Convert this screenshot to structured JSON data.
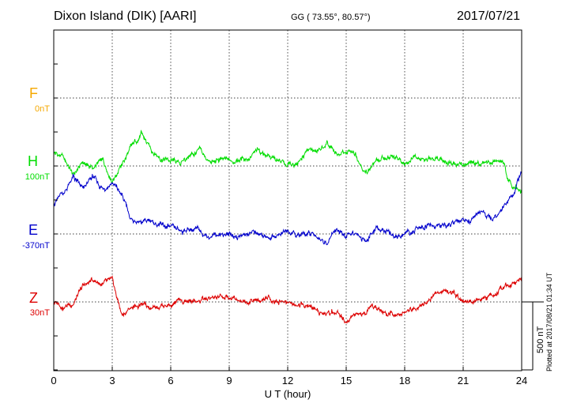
{
  "header": {
    "title": "Dixon Island (DIK)  [AARI]",
    "coords": "GG ( 73.55°,  80.57°)",
    "date": "2017/07/21"
  },
  "plotted_note": "Plotted at 2017/08/21 01:34 UT",
  "scale_label": "500 nT",
  "colors": {
    "F": "#f5a800",
    "H": "#00dd00",
    "E": "#0000cc",
    "Z": "#dd0000"
  },
  "chart_data": {
    "type": "line",
    "xlabel": "U T (hour)",
    "xlim": [
      0,
      24
    ],
    "xticks": [
      "0",
      "3",
      "6",
      "9",
      "12",
      "15",
      "18",
      "21",
      "24"
    ],
    "grid": true,
    "scale_bar_nT": 500,
    "components": [
      {
        "name": "F",
        "baseline": "0nT",
        "color": "#f5a800"
      },
      {
        "name": "H",
        "baseline": "100nT",
        "color": "#00dd00"
      },
      {
        "name": "E",
        "baseline": "-370nT",
        "color": "#0000cc"
      },
      {
        "name": "Z",
        "baseline": "30nT",
        "color": "#dd0000"
      }
    ],
    "series": [
      {
        "name": "H",
        "x": [
          0,
          0.5,
          1,
          1.5,
          2,
          2.5,
          3,
          3.5,
          4,
          4.5,
          5,
          5.5,
          6,
          6.5,
          7,
          7.5,
          8,
          8.5,
          9,
          9.5,
          10,
          10.5,
          11,
          11.5,
          12,
          12.5,
          13,
          13.5,
          14,
          14.5,
          15,
          15.5,
          16,
          16.5,
          17,
          17.5,
          18,
          18.5,
          19,
          19.5,
          20,
          20.5,
          21,
          21.5,
          22,
          22.5,
          23,
          23.5,
          24
        ],
        "y": [
          100,
          60,
          -70,
          30,
          -20,
          40,
          -100,
          10,
          140,
          230,
          120,
          60,
          40,
          20,
          80,
          110,
          20,
          40,
          40,
          50,
          60,
          110,
          80,
          30,
          10,
          20,
          120,
          100,
          150,
          80,
          100,
          90,
          -50,
          30,
          60,
          60,
          10,
          80,
          60,
          40,
          30,
          40,
          10,
          20,
          20,
          40,
          30,
          -150,
          -200
        ]
      },
      {
        "name": "E",
        "x": [
          0,
          0.5,
          1,
          1.5,
          2,
          2.5,
          3,
          3.5,
          4,
          4.5,
          5,
          5.5,
          6,
          6.5,
          7,
          7.5,
          8,
          8.5,
          9,
          9.5,
          10,
          10.5,
          11,
          11.5,
          12,
          12.5,
          13,
          13.5,
          14,
          14.5,
          15,
          15.5,
          16,
          16.5,
          17,
          17.5,
          18,
          18.5,
          19,
          19.5,
          20,
          20.5,
          21,
          21.5,
          22,
          22.5,
          23,
          23.5,
          24
        ],
        "y": [
          230,
          300,
          420,
          320,
          420,
          330,
          380,
          280,
          100,
          80,
          100,
          60,
          40,
          20,
          40,
          20,
          -20,
          0,
          0,
          -20,
          0,
          20,
          -30,
          0,
          20,
          -20,
          0,
          -20,
          -60,
          40,
          -30,
          20,
          -60,
          40,
          20,
          -20,
          -10,
          30,
          40,
          60,
          60,
          80,
          90,
          120,
          160,
          110,
          200,
          280,
          440
        ]
      },
      {
        "name": "Z",
        "x": [
          0,
          0.5,
          1,
          1.5,
          2,
          2.5,
          3,
          3.5,
          4,
          4.5,
          5,
          5.5,
          6,
          6.5,
          7,
          7.5,
          8,
          8.5,
          9,
          9.5,
          10,
          10.5,
          11,
          11.5,
          12,
          12.5,
          13,
          13.5,
          14,
          14.5,
          15,
          15.5,
          16,
          16.5,
          17,
          17.5,
          18,
          18.5,
          19,
          19.5,
          20,
          20.5,
          21,
          21.5,
          22,
          22.5,
          23,
          23.5,
          24
        ],
        "y": [
          0,
          -30,
          -10,
          110,
          160,
          130,
          150,
          -100,
          -40,
          -20,
          -30,
          -20,
          -20,
          0,
          0,
          10,
          20,
          30,
          30,
          20,
          10,
          10,
          20,
          10,
          0,
          -20,
          -20,
          -60,
          -80,
          -60,
          -140,
          -100,
          -90,
          -40,
          -90,
          -70,
          -80,
          -50,
          0,
          40,
          80,
          60,
          10,
          0,
          20,
          60,
          80,
          140,
          180
        ]
      }
    ]
  }
}
